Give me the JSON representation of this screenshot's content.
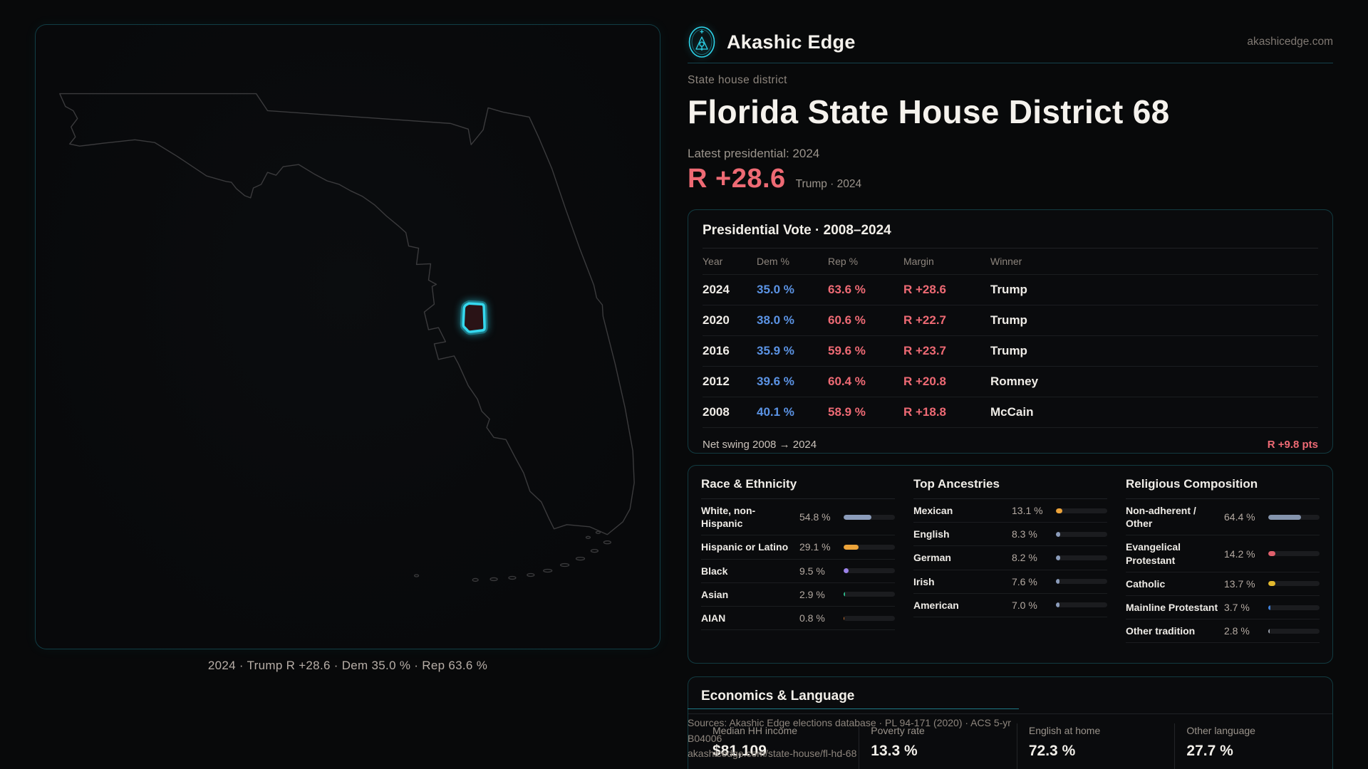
{
  "brand": {
    "name": "Akashic Edge",
    "domain": "akashicedge.com"
  },
  "colors": {
    "accent": "#2dd4ea",
    "dem_blue": "#5b93e4",
    "rep_red": "#ee6a74"
  },
  "map": {
    "caption": "2024 · Trump R +28.6 · Dem 35.0 % · Rep 63.6 %"
  },
  "header": {
    "kicker": "State house district",
    "title": "Florida State House District 68",
    "latest": "Latest presidential: 2024",
    "margin": "R +28.6",
    "margin_context": "Trump · 2024"
  },
  "presidential_table": {
    "title": "Presidential Vote · 2008–2024",
    "columns": [
      "Year",
      "Dem %",
      "Rep %",
      "Margin",
      "Winner"
    ],
    "rows": [
      {
        "year": "2024",
        "dem": "35.0 %",
        "rep": "63.6 %",
        "margin": "R +28.6",
        "winner": "Trump"
      },
      {
        "year": "2020",
        "dem": "38.0 %",
        "rep": "60.6 %",
        "margin": "R +22.7",
        "winner": "Trump"
      },
      {
        "year": "2016",
        "dem": "35.9 %",
        "rep": "59.6 %",
        "margin": "R +23.7",
        "winner": "Trump"
      },
      {
        "year": "2012",
        "dem": "39.6 %",
        "rep": "60.4 %",
        "margin": "R +20.8",
        "winner": "Romney"
      },
      {
        "year": "2008",
        "dem": "40.1 %",
        "rep": "58.9 %",
        "margin": "R +18.8",
        "winner": "McCain"
      }
    ],
    "net_swing_label": "Net swing 2008 → 2024",
    "net_swing_value": "R +9.8 pts"
  },
  "demographics": {
    "race": {
      "title": "Race & Ethnicity",
      "rows": [
        {
          "label": "White, non-Hispanic",
          "value": "54.8 %",
          "pct": 54.8,
          "color": "#8b9cba"
        },
        {
          "label": "Hispanic or Latino",
          "value": "29.1 %",
          "pct": 29.1,
          "color": "#eca33a"
        },
        {
          "label": "Black",
          "value": "9.5 %",
          "pct": 9.5,
          "color": "#9b82e8"
        },
        {
          "label": "Asian",
          "value": "2.9 %",
          "pct": 2.9,
          "color": "#2eb98a"
        },
        {
          "label": "AIAN",
          "value": "0.8 %",
          "pct": 0.8,
          "color": "#c9702e"
        }
      ]
    },
    "ancestries": {
      "title": "Top Ancestries",
      "rows": [
        {
          "label": "Mexican",
          "value": "13.1 %",
          "pct": 13.1,
          "color": "#eca33a"
        },
        {
          "label": "English",
          "value": "8.3 %",
          "pct": 8.3,
          "color": "#8b9cba"
        },
        {
          "label": "German",
          "value": "8.2 %",
          "pct": 8.2,
          "color": "#8b9cba"
        },
        {
          "label": "Irish",
          "value": "7.6 %",
          "pct": 7.6,
          "color": "#8b9cba"
        },
        {
          "label": "American",
          "value": "7.0 %",
          "pct": 7.0,
          "color": "#8b9cba"
        }
      ]
    },
    "religion": {
      "title": "Religious Composition",
      "rows": [
        {
          "label": "Non-adherent / Other",
          "value": "64.4 %",
          "pct": 64.4,
          "color": "#8494ad"
        },
        {
          "label": "Evangelical Protestant",
          "value": "14.2 %",
          "pct": 14.2,
          "color": "#e0606c"
        },
        {
          "label": "Catholic",
          "value": "13.7 %",
          "pct": 13.7,
          "color": "#e3b92e"
        },
        {
          "label": "Mainline Protestant",
          "value": "3.7 %",
          "pct": 3.7,
          "color": "#3f7fd6"
        },
        {
          "label": "Other tradition",
          "value": "2.8 %",
          "pct": 2.8,
          "color": "#9aa0ab"
        }
      ]
    }
  },
  "economics": {
    "title": "Economics & Language",
    "stats": [
      {
        "label": "Median HH income",
        "value": "$81,109"
      },
      {
        "label": "Poverty rate",
        "value": "13.3 %"
      },
      {
        "label": "English at home",
        "value": "72.3 %"
      },
      {
        "label": "Other language",
        "value": "27.7 %"
      }
    ]
  },
  "footer": {
    "sources": "Sources: Akashic Edge elections database · PL 94-171 (2020) · ACS 5-yr B04006",
    "link": "akashicedge.com/state-house/fl-hd-68"
  }
}
